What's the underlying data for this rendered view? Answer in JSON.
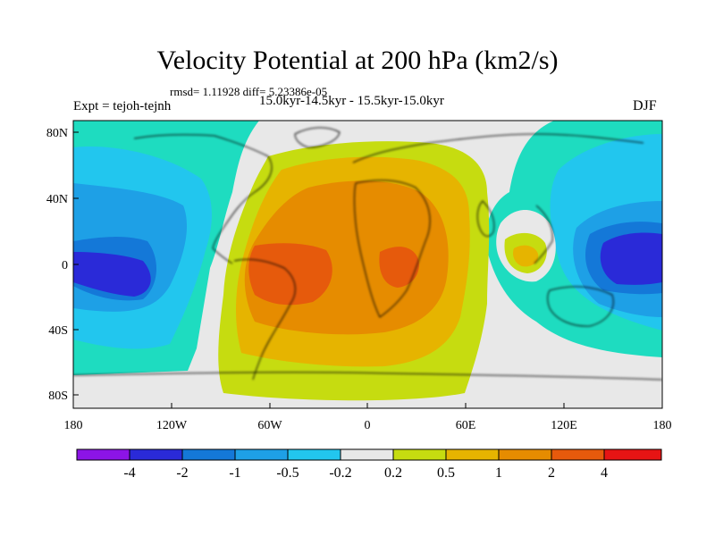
{
  "title": "Velocity Potential at 200 hPa (km2/s)",
  "stats": "rmsd= 1.11928 diff= 5.23386e-05",
  "experiment": "Expt = tejoh-tejnh",
  "period": "15.0kyr-14.5kyr - 15.5kyr-15.0kyr",
  "season": "DJF",
  "colors": {
    "c_m5": "#8c14e6",
    "c_m4": "#2a2ad8",
    "c_m3": "#1478d8",
    "c_m2": "#1ea0e6",
    "c_m1": "#22c6ee",
    "c_m0": "#1edcc0",
    "c_0": "#e8e8e8",
    "c_p0": "#c6dc10",
    "c_p1": "#e6b400",
    "c_p2": "#e68c00",
    "c_p3": "#e65a0c",
    "c_p4": "#e61414",
    "land": "#000000"
  },
  "map": {
    "y_ticks": [
      "80N",
      "40N",
      "0",
      "40S",
      "80S"
    ],
    "x_ticks": [
      "180",
      "120W",
      "60W",
      "0",
      "60E",
      "120E",
      "180"
    ]
  },
  "colorbar": {
    "labels": [
      "-4",
      "-2",
      "-1",
      "-0.5",
      "-0.2",
      "0.2",
      "0.5",
      "1",
      "2",
      "4"
    ]
  }
}
